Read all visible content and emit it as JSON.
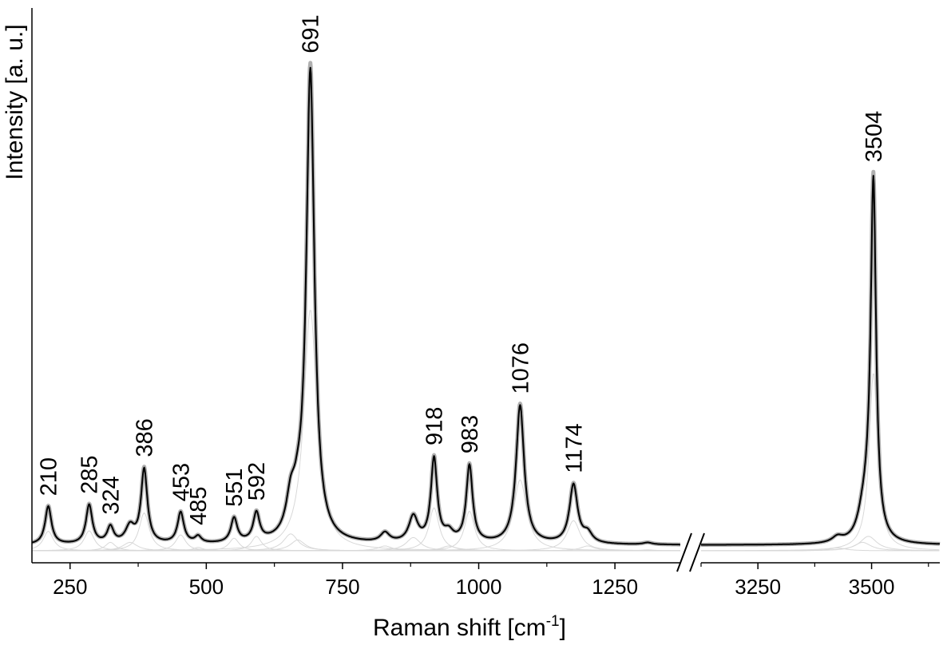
{
  "chart_data": {
    "type": "line",
    "title": "",
    "xlabel": "Raman shift [cm",
    "xlabel_sup": "-1",
    "xlabel_end": "]",
    "ylabel": "Intensity [a. u.]",
    "x_axis_break": true,
    "segments": [
      {
        "xlim": [
          180,
          1370
        ],
        "ticks": [
          "250",
          "500",
          "750",
          "1000",
          "1250"
        ],
        "tick_values": [
          250,
          500,
          750,
          1000,
          1250
        ]
      },
      {
        "xlim": [
          3125,
          3650
        ],
        "ticks": [
          "3250",
          "3500"
        ],
        "tick_values": [
          3250,
          3500
        ]
      }
    ],
    "ylim": [
      0,
      1
    ],
    "grid": false,
    "legend": "none",
    "colors": {
      "measured": "#000000",
      "fitted": "#b0b0b0",
      "components": "#d8d8d8"
    },
    "peaks": [
      {
        "label": "210",
        "x": 210,
        "height": 0.081
      },
      {
        "label": "285",
        "x": 285,
        "height": 0.083
      },
      {
        "label": "324",
        "x": 324,
        "height": 0.035
      },
      {
        "label": "386",
        "x": 386,
        "height": 0.157
      },
      {
        "label": "453",
        "x": 453,
        "height": 0.066
      },
      {
        "label": "485",
        "x": 485,
        "height": 0.014
      },
      {
        "label": "551",
        "x": 551,
        "height": 0.052
      },
      {
        "label": "592",
        "x": 592,
        "height": 0.06
      },
      {
        "label": "691",
        "x": 691,
        "height": 1.0
      },
      {
        "label": "918",
        "x": 918,
        "height": 0.178
      },
      {
        "label": "983",
        "x": 983,
        "height": 0.164
      },
      {
        "label": "1076",
        "x": 1076,
        "height": 0.294
      },
      {
        "label": "1174",
        "x": 1174,
        "height": 0.125
      },
      {
        "label": "3504",
        "x": 3504,
        "height": 0.738
      }
    ],
    "minor_bands": [
      {
        "x": 360,
        "height": 0.035
      },
      {
        "x": 655,
        "height": 0.07
      },
      {
        "x": 668,
        "height": 0.045
      },
      {
        "x": 828,
        "height": 0.02
      },
      {
        "x": 880,
        "height": 0.055
      },
      {
        "x": 945,
        "height": 0.02
      },
      {
        "x": 1200,
        "height": 0.02
      },
      {
        "x": 1310,
        "height": 0.004
      },
      {
        "x": 3425,
        "height": 0.012
      },
      {
        "x": 3480,
        "height": 0.035
      },
      {
        "x": 3493,
        "height": 0.06
      }
    ]
  }
}
